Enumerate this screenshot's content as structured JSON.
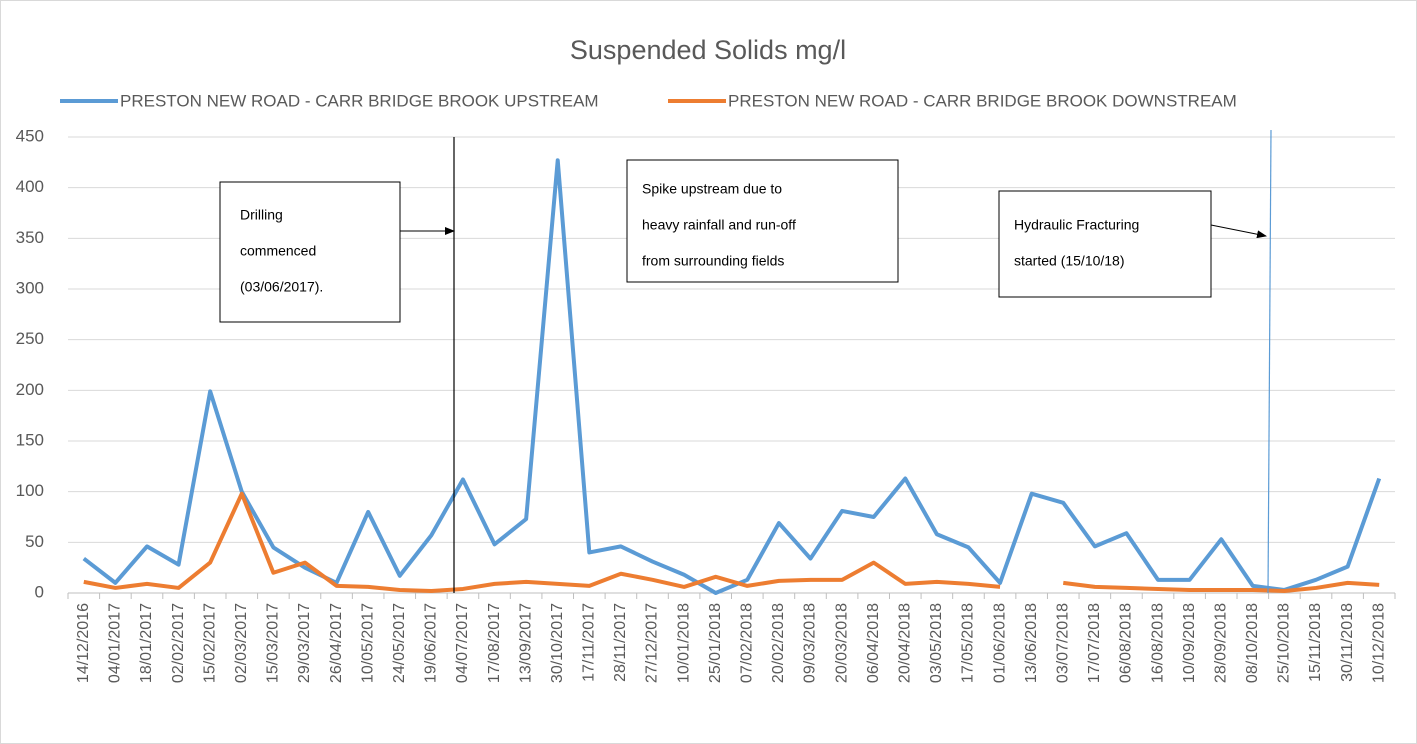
{
  "chart_data": {
    "type": "line",
    "title": "Suspended Solids mg/l",
    "categories": [
      "14/12/2016",
      "04/01/2017",
      "18/01/2017",
      "02/02/2017",
      "15/02/2017",
      "02/03/2017",
      "15/03/2017",
      "29/03/2017",
      "26/04/2017",
      "10/05/2017",
      "24/05/2017",
      "19/06/2017",
      "04/07/2017",
      "17/08/2017",
      "13/09/2017",
      "30/10/2017",
      "17/11/2017",
      "28/11/2017",
      "27/12/2017",
      "10/01/2018",
      "25/01/2018",
      "07/02/2018",
      "20/02/2018",
      "09/03/2018",
      "20/03/2018",
      "06/04/2018",
      "20/04/2018",
      "03/05/2018",
      "17/05/2018",
      "01/06/2018",
      "13/06/2018",
      "03/07/2018",
      "17/07/2018",
      "06/08/2018",
      "16/08/2018",
      "10/09/2018",
      "28/09/2018",
      "08/10/2018",
      "25/10/2018",
      "15/11/2018",
      "30/11/2018",
      "10/12/2018"
    ],
    "series": [
      {
        "name": "PRESTON NEW ROAD - CARR BRIDGE BROOK UPSTREAM",
        "color": "#5b9bd5",
        "values": [
          34,
          10,
          46,
          28,
          199,
          100,
          45,
          25,
          10,
          80,
          17,
          57,
          112,
          48,
          73,
          427,
          40,
          46,
          31,
          18,
          0,
          13,
          69,
          34,
          81,
          75,
          113,
          58,
          45,
          10,
          98,
          89,
          46,
          59,
          13,
          13,
          53,
          7,
          3,
          13,
          26,
          113
        ]
      },
      {
        "name": "PRESTON NEW ROAD - CARR BRIDGE BROOK DOWNSTREAM",
        "color": "#ed7d31",
        "values": [
          11,
          5,
          9,
          5,
          30,
          98,
          20,
          30,
          7,
          6,
          3,
          2,
          4,
          9,
          11,
          9,
          7,
          19,
          13,
          6,
          16,
          7,
          12,
          13,
          13,
          30,
          9,
          11,
          9,
          6,
          null,
          10,
          6,
          5,
          4,
          3,
          3,
          3,
          2,
          5,
          10,
          8
        ]
      }
    ],
    "ylim": [
      0,
      450
    ],
    "yticks": [
      0,
      50,
      100,
      150,
      200,
      250,
      300,
      350,
      400,
      450
    ],
    "grid": true,
    "annotations": [
      {
        "lines": [
          "Drilling",
          "commenced",
          "(03/06/2017)."
        ]
      },
      {
        "lines": [
          "Spike upstream due to",
          "heavy rainfall and run-off",
          "from surrounding fields"
        ]
      },
      {
        "lines": [
          "Hydraulic Fracturing",
          "started (15/10/18)"
        ]
      }
    ]
  }
}
